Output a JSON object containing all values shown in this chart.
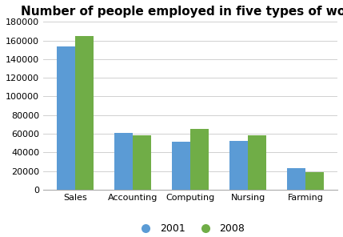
{
  "title": "Number of people employed in five types of work",
  "categories": [
    "Sales",
    "Accounting",
    "Computing",
    "Nursing",
    "Farming"
  ],
  "values_2001": [
    154000,
    61000,
    51000,
    52000,
    23000
  ],
  "values_2008": [
    165000,
    58000,
    65000,
    58000,
    19000
  ],
  "color_2001": "#5b9bd5",
  "color_2008": "#70ad47",
  "ylim": [
    0,
    180000
  ],
  "yticks": [
    0,
    20000,
    40000,
    60000,
    80000,
    100000,
    120000,
    140000,
    160000,
    180000
  ],
  "legend_labels": [
    "2001",
    "2008"
  ],
  "background_color": "#ffffff",
  "title_fontsize": 11,
  "tick_fontsize": 8,
  "legend_fontsize": 9,
  "bar_width": 0.32
}
